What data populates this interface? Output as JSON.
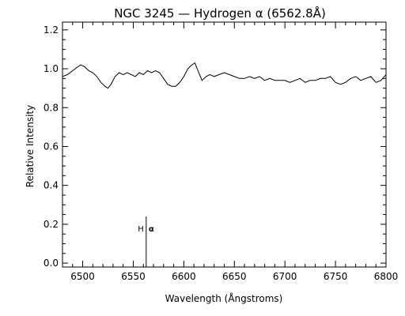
{
  "chart_data": {
    "type": "line",
    "title": "NGC 3245 — Hydrogen α (6562.8Å)",
    "xlabel": "Wavelength (Ångstroms)",
    "ylabel": "Relative Intensity",
    "xlim": [
      6480,
      6800
    ],
    "ylim": [
      -0.02,
      1.24
    ],
    "xticks": [
      6500,
      6550,
      6600,
      6650,
      6700,
      6750,
      6800
    ],
    "yticks": [
      0.0,
      0.2,
      0.4,
      0.6,
      0.8,
      1.0,
      1.2
    ],
    "xtick_labels": [
      "6500",
      "6550",
      "6600",
      "6650",
      "6700",
      "6750",
      "6800"
    ],
    "ytick_labels": [
      "0.0",
      "0.2",
      "0.4",
      "0.6",
      "0.8",
      "1.0",
      "1.2"
    ],
    "grid": false,
    "series": [
      {
        "x": [
          6480,
          6485,
          6490,
          6495,
          6498,
          6502,
          6506,
          6510,
          6514,
          6518,
          6522,
          6525,
          6528,
          6532,
          6536,
          6540,
          6544,
          6548,
          6552,
          6556,
          6560,
          6564,
          6568,
          6572,
          6576,
          6580,
          6584,
          6588,
          6592,
          6596,
          6600,
          6604,
          6608,
          6611,
          6614,
          6618,
          6622,
          6626,
          6630,
          6635,
          6640,
          6645,
          6650,
          6655,
          6660,
          6665,
          6670,
          6675,
          6680,
          6685,
          6690,
          6695,
          6700,
          6705,
          6710,
          6715,
          6720,
          6725,
          6730,
          6735,
          6740,
          6745,
          6750,
          6755,
          6760,
          6765,
          6770,
          6775,
          6780,
          6785,
          6790,
          6795,
          6800
        ],
        "values": [
          0.96,
          0.97,
          0.99,
          1.01,
          1.02,
          1.01,
          0.99,
          0.98,
          0.96,
          0.93,
          0.91,
          0.9,
          0.92,
          0.96,
          0.98,
          0.97,
          0.98,
          0.97,
          0.96,
          0.98,
          0.97,
          0.99,
          0.98,
          0.99,
          0.98,
          0.95,
          0.92,
          0.91,
          0.91,
          0.93,
          0.96,
          1.0,
          1.02,
          1.03,
          0.99,
          0.94,
          0.96,
          0.97,
          0.96,
          0.97,
          0.98,
          0.97,
          0.96,
          0.95,
          0.95,
          0.96,
          0.95,
          0.96,
          0.94,
          0.95,
          0.94,
          0.94,
          0.94,
          0.93,
          0.94,
          0.95,
          0.93,
          0.94,
          0.94,
          0.95,
          0.95,
          0.96,
          0.93,
          0.92,
          0.93,
          0.95,
          0.96,
          0.94,
          0.95,
          0.96,
          0.93,
          0.94,
          0.97
        ]
      }
    ],
    "annotations": [
      {
        "label_left": "H",
        "label_right": "α",
        "x": 6562.8,
        "y_top": 0.24
      }
    ]
  }
}
